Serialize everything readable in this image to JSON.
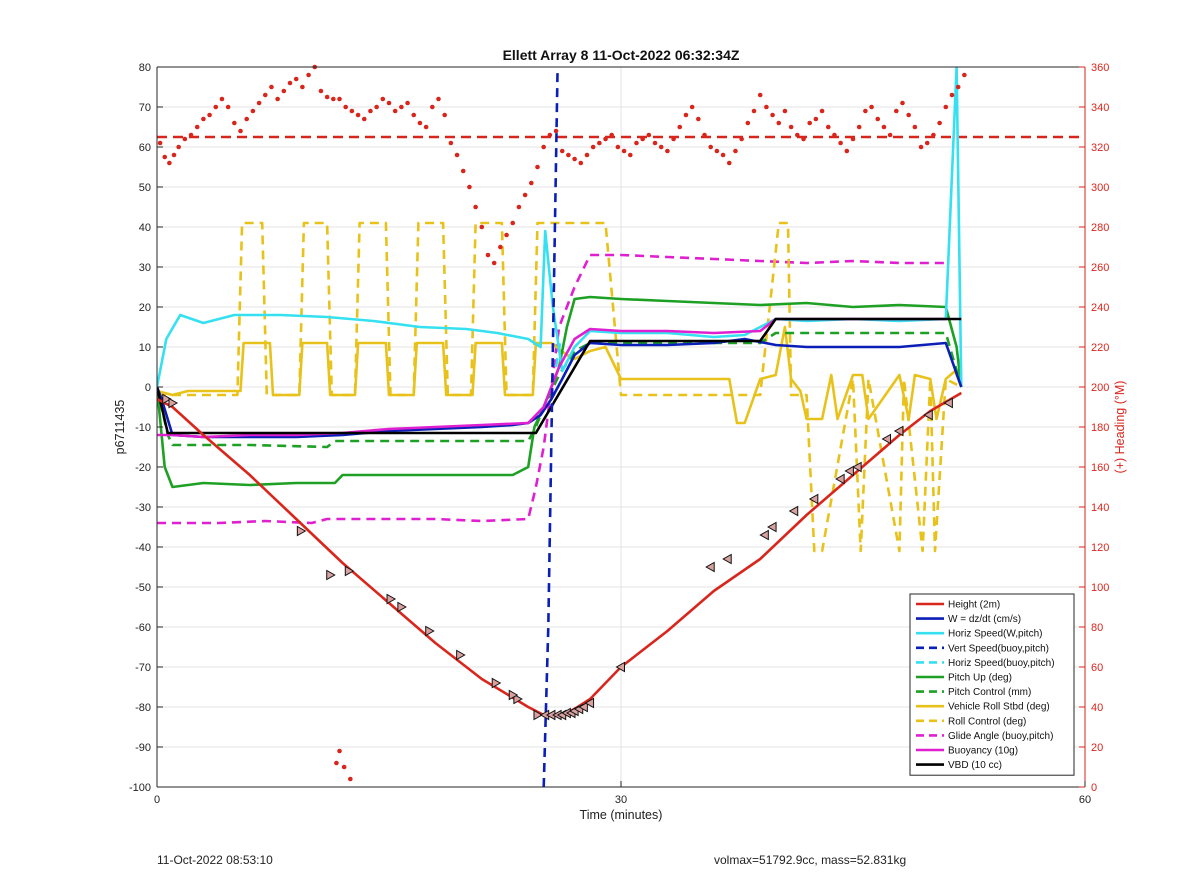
{
  "chart_data": {
    "type": "line",
    "title": "Ellett Array 8 11-Oct-2022 06:32:34Z",
    "xlabel": "Time (minutes)",
    "ylabel": "p6711435",
    "y2label": "(+) Heading (°M)",
    "xlim": [
      0,
      60
    ],
    "ylim": [
      -100,
      80
    ],
    "y2lim": [
      0,
      360
    ],
    "xticks": [
      0,
      30,
      60
    ],
    "yticks": [
      -100,
      -90,
      -80,
      -70,
      -60,
      -50,
      -40,
      -30,
      -20,
      -10,
      0,
      10,
      20,
      30,
      40,
      50,
      60,
      70,
      80
    ],
    "y2ticks": [
      0,
      20,
      40,
      60,
      80,
      100,
      120,
      140,
      160,
      180,
      200,
      220,
      240,
      260,
      280,
      300,
      320,
      340,
      360
    ],
    "xtick_labels": [
      "0",
      "30",
      "60"
    ],
    "ytick_labels": [
      "-100",
      "-90",
      "-80",
      "-70",
      "-60",
      "-50",
      "-40",
      "-30",
      "-20",
      "-10",
      "0",
      "10",
      "20",
      "30",
      "40",
      "50",
      "60",
      "70",
      "80"
    ],
    "y2tick_labels": [
      "0",
      "20",
      "40",
      "60",
      "80",
      "100",
      "120",
      "140",
      "160",
      "180",
      "200",
      "220",
      "240",
      "260",
      "280",
      "300",
      "320",
      "340",
      "360"
    ],
    "grid": true,
    "legend_position": "bottom-right",
    "heading_reference": 325,
    "series": [
      {
        "name": "Height (2m)",
        "color": "#d9261c",
        "dash": "solid",
        "x": [
          0,
          1,
          3,
          6,
          9,
          12,
          15,
          18,
          21,
          24,
          25,
          25.8,
          26.5,
          27.2,
          28,
          30,
          33,
          36,
          39,
          42,
          45,
          48,
          50,
          52
        ],
        "y": [
          -3,
          -5,
          -12,
          -22,
          -33,
          -44,
          -54,
          -64,
          -73,
          -80,
          -82,
          -82,
          -81.5,
          -80,
          -78,
          -70,
          -61,
          -51,
          -43,
          -32,
          -22,
          -12,
          -6,
          -1.5
        ]
      },
      {
        "name": "W = dz/dt (cm/s)",
        "color": "#0b1fb8",
        "dash": "solid",
        "x": [
          0,
          0.3,
          1,
          3,
          6,
          9,
          12,
          15,
          18,
          21,
          23,
          24,
          24.8,
          25.5,
          26.2,
          27,
          28,
          30,
          33,
          36,
          38,
          40,
          42,
          45,
          48,
          51,
          52
        ],
        "y": [
          0,
          -3,
          -12,
          -12.5,
          -12.5,
          -12.5,
          -12,
          -11,
          -10.5,
          -10,
          -9.5,
          -9,
          -7,
          -3,
          2,
          8,
          11,
          10.5,
          10.5,
          11,
          12,
          10.5,
          10,
          10,
          10,
          11,
          0
        ]
      },
      {
        "name": "Horiz Speed(W,pitch)",
        "color": "#35e0f0",
        "dash": "solid",
        "x": [
          0,
          0.6,
          1.5,
          3,
          5,
          8,
          11,
          14,
          17,
          20,
          22,
          24,
          24.8,
          25.1,
          25.6,
          26.2,
          27,
          28,
          30,
          33,
          36,
          38,
          40,
          42,
          45,
          48,
          51,
          51.7,
          52
        ],
        "y": [
          0,
          12,
          18,
          16,
          18,
          18,
          17.5,
          16.5,
          15,
          14.5,
          13.5,
          12,
          10,
          39,
          20,
          4,
          10,
          14,
          13.5,
          13.5,
          12.5,
          13,
          17,
          16.5,
          17,
          16.5,
          17,
          80,
          0
        ]
      },
      {
        "name": "Vert Speed(buoy,pitch)",
        "color": "#0b1fb8",
        "dash": "dashed",
        "x": [
          25,
          25.3,
          25.6,
          25.9
        ],
        "y": [
          -100,
          -60,
          10,
          80
        ]
      },
      {
        "name": "Horiz Speed(buoy,pitch)",
        "color": "#35e0f0",
        "dash": "dashed",
        "x": [
          25.8,
          26.1
        ],
        "y": [
          5,
          12
        ]
      },
      {
        "name": "Pitch Up (deg)",
        "color": "#1ea024",
        "dash": "solid",
        "x": [
          0,
          0.5,
          1,
          3,
          6,
          9,
          11.5,
          12,
          15,
          18,
          21,
          23,
          24,
          24.4,
          25,
          26,
          26.5,
          27,
          28,
          30,
          33,
          36,
          39,
          42,
          45,
          48,
          51,
          51.7,
          52
        ],
        "y": [
          0,
          -20,
          -25,
          -24,
          -24.5,
          -24,
          -24,
          -22,
          -22,
          -22,
          -22,
          -22,
          -20,
          -10,
          -5,
          5,
          15,
          22,
          22.5,
          22,
          21.5,
          21,
          20.5,
          21,
          20,
          20.5,
          20,
          10,
          0
        ]
      },
      {
        "name": "Pitch Control (mm)",
        "color": "#1ea024",
        "dash": "dashed",
        "x": [
          0,
          0.7,
          1,
          6,
          11,
          11.5,
          18,
          24,
          24.5,
          25,
          26,
          27,
          28,
          30,
          36,
          39,
          40,
          45,
          51,
          52
        ],
        "y": [
          0,
          -12,
          -14.5,
          -14.5,
          -15,
          -13.5,
          -13.5,
          -13.5,
          -10,
          -5,
          3,
          9,
          11,
          11,
          11,
          11,
          13.5,
          13.5,
          13.5,
          0
        ]
      },
      {
        "name": "Vehicle Roll Stbd (deg)",
        "color": "#e8c21a",
        "dash": "solid",
        "x": [
          0,
          1,
          2,
          4,
          5.4,
          5.6,
          7.3,
          7.5,
          9.2,
          9.4,
          11,
          11.2,
          12.8,
          13,
          14.8,
          15,
          16.6,
          16.8,
          18.5,
          18.7,
          20.4,
          20.6,
          22.3,
          22.5,
          24.3,
          24.5,
          25.5,
          26.5,
          27,
          28,
          29,
          30,
          33,
          36,
          37,
          37.5,
          38,
          39,
          40,
          40.6,
          41,
          41.6,
          42,
          43,
          43.6,
          44,
          45,
          45.6,
          46,
          48,
          48.6,
          49,
          50,
          50.4,
          51,
          51.6,
          52
        ],
        "y": [
          -1,
          -2,
          -1,
          -1,
          -1,
          11,
          11,
          -2,
          -2,
          11,
          11,
          -2,
          -2,
          11,
          11,
          -2,
          -2,
          11,
          11,
          -2,
          -2,
          11,
          11,
          -2,
          -2,
          11,
          11,
          8,
          7,
          9,
          10,
          2,
          2,
          2,
          2,
          -9,
          -9,
          2,
          3,
          15,
          2,
          -1,
          -8,
          -8,
          3,
          -8,
          3,
          3,
          -8,
          3,
          -8,
          3,
          2,
          -8,
          2,
          4,
          0
        ]
      },
      {
        "name": "Roll Control (deg)",
        "color": "#e8c21a",
        "dash": "dashed",
        "x": [
          0,
          1.5,
          2,
          5.2,
          5.5,
          6,
          6.8,
          7.1,
          9.2,
          9.5,
          11,
          11.3,
          12.8,
          13.1,
          14.8,
          15.1,
          16.6,
          16.9,
          18.5,
          18.8,
          20.3,
          20.6,
          22.3,
          22.6,
          24.3,
          24.6,
          27.6,
          28.5,
          29,
          30,
          33,
          36,
          37,
          38,
          39,
          40.2,
          40.8,
          41,
          42,
          42.5,
          43,
          45,
          45.5,
          46,
          48,
          48.3,
          49.5,
          50,
          50.3,
          51,
          52
        ],
        "y": [
          -2,
          -2,
          -2,
          -2,
          41,
          41,
          41,
          -2,
          -2,
          41,
          41,
          -2,
          -2,
          41,
          41,
          -2,
          -2,
          41,
          41,
          -2,
          -2,
          41,
          41,
          -2,
          -2,
          41,
          41,
          41,
          41,
          -2,
          -2,
          -2,
          -2,
          -2,
          -2,
          41,
          41,
          -2,
          -2,
          -41,
          -41,
          2,
          -41,
          2,
          -41,
          2,
          -41,
          2,
          -41,
          2,
          0
        ]
      },
      {
        "name": "Glide Angle (buoy,pitch)",
        "color": "#e020d0",
        "dash": "dashed",
        "x": [
          0,
          4,
          7,
          10,
          11,
          12,
          15,
          18,
          21,
          24,
          24.5,
          25,
          26,
          27,
          28,
          30,
          33,
          36,
          39,
          42,
          45,
          48,
          51
        ],
        "y": [
          -34,
          -34,
          -33.5,
          -34,
          -33,
          -33,
          -33,
          -33,
          -33.5,
          -33,
          -25,
          -15,
          15,
          25,
          33,
          33,
          32.5,
          32,
          31.5,
          31,
          31.5,
          31,
          31
        ]
      },
      {
        "name": "Buoyancy (10g)",
        "color": "#e020d0",
        "dash": "solid",
        "x": [
          0,
          1,
          3,
          6,
          9,
          12,
          15,
          18,
          21,
          24,
          25,
          26,
          27,
          28,
          30,
          33,
          36,
          39,
          40,
          42,
          45,
          48,
          51
        ],
        "y": [
          -12,
          -12,
          -12.5,
          -12,
          -12,
          -11.5,
          -10.5,
          -10,
          -9.5,
          -9,
          -5,
          5,
          12,
          14.5,
          14,
          14,
          13.5,
          14,
          17,
          17,
          17,
          17,
          17
        ]
      },
      {
        "name": "VBD (10 cc)",
        "color": "#000000",
        "dash": "solid",
        "x": [
          0,
          0.7,
          1,
          24,
          24.5,
          28,
          30,
          39,
          40,
          52
        ],
        "y": [
          0,
          -11.5,
          -11.5,
          -11.5,
          -11.5,
          11.5,
          11.5,
          11.5,
          17,
          17
        ]
      },
      {
        "name": "Heading",
        "color": "#d9261c",
        "dash": "none",
        "marker": "dot",
        "axis": "right",
        "x": [
          0.2,
          0.5,
          0.8,
          1.1,
          1.4,
          1.8,
          2.2,
          2.6,
          3.0,
          3.4,
          3.8,
          4.2,
          4.6,
          5.0,
          5.4,
          5.8,
          6.2,
          6.6,
          7.0,
          7.4,
          7.8,
          8.2,
          8.6,
          9.0,
          9.4,
          9.8,
          10.2,
          10.6,
          11.0,
          11.4,
          11.8,
          12.2,
          12.6,
          13.0,
          13.4,
          13.8,
          14.2,
          14.6,
          15.0,
          15.4,
          15.8,
          16.2,
          16.6,
          17.0,
          17.4,
          17.8,
          18.2,
          18.6,
          19.0,
          19.4,
          19.8,
          20.2,
          20.6,
          21.0,
          21.4,
          21.8,
          22.2,
          22.6,
          23.0,
          23.4,
          23.8,
          24.2,
          24.6,
          25.0,
          25.4,
          25.8,
          26.2,
          26.6,
          27.0,
          27.4,
          27.8,
          28.2,
          28.6,
          29.0,
          29.4,
          29.8,
          30.2,
          30.6,
          31.0,
          31.4,
          31.8,
          32.2,
          32.6,
          33.0,
          33.4,
          33.8,
          34.2,
          34.6,
          35.0,
          35.4,
          35.8,
          36.2,
          36.6,
          37.0,
          37.4,
          37.8,
          38.2,
          38.6,
          39.0,
          39.4,
          39.8,
          40.2,
          40.6,
          41.0,
          41.4,
          41.8,
          42.2,
          42.6,
          43.0,
          43.4,
          43.8,
          44.2,
          44.6,
          45.0,
          45.4,
          45.8,
          46.2,
          46.6,
          47.0,
          47.4,
          47.8,
          48.2,
          48.6,
          49.0,
          49.4,
          49.8,
          50.2,
          50.6,
          51.0,
          51.4,
          51.8,
          52.2,
          11.6,
          11.8,
          12.1,
          12.5
        ],
        "y": [
          322,
          315,
          312,
          316,
          320,
          324,
          326,
          330,
          334,
          336,
          340,
          344,
          340,
          332,
          328,
          334,
          338,
          342,
          346,
          350,
          344,
          348,
          352,
          354,
          350,
          356,
          360,
          348,
          345,
          344,
          344,
          340,
          338,
          336,
          334,
          338,
          340,
          344,
          342,
          338,
          340,
          342,
          336,
          332,
          330,
          340,
          344,
          336,
          322,
          316,
          308,
          300,
          290,
          280,
          266,
          262,
          270,
          276,
          282,
          290,
          296,
          302,
          310,
          320,
          326,
          328,
          318,
          316,
          314,
          312,
          316,
          320,
          322,
          324,
          326,
          320,
          318,
          316,
          322,
          324,
          326,
          322,
          320,
          318,
          324,
          330,
          336,
          340,
          334,
          326,
          320,
          318,
          316,
          312,
          318,
          324,
          332,
          338,
          346,
          340,
          336,
          332,
          338,
          330,
          326,
          324,
          332,
          334,
          338,
          330,
          326,
          322,
          318,
          324,
          330,
          338,
          340,
          334,
          330,
          326,
          338,
          342,
          336,
          330,
          320,
          322,
          326,
          332,
          340,
          346,
          350,
          356,
          12,
          18,
          10,
          4
        ]
      }
    ],
    "height_markers": {
      "x": [
        0.6,
        1.0,
        11.2,
        23.3,
        9.3,
        12.4,
        15.1,
        15.8,
        17.6,
        19.6,
        21.9,
        23.0,
        24.6,
        25.1,
        25.5,
        25.9,
        26.2,
        26.5,
        26.8,
        27.0,
        27.3,
        27.6,
        28.0,
        30.0,
        35.8,
        36.9,
        39.3,
        39.8,
        41.2,
        42.5,
        44.2,
        44.8,
        45.3,
        47.2,
        48.0,
        49.9,
        51.2
      ],
      "y": [
        -3,
        -4,
        -47,
        -78,
        -36,
        -46,
        -53,
        -55,
        -61,
        -67,
        -74,
        -77,
        -82,
        -82,
        -82,
        -82,
        -82,
        -81.5,
        -81.5,
        -81,
        -80.5,
        -80,
        -79,
        -70,
        -45,
        -43,
        -37,
        -35,
        -31,
        -28,
        -23,
        -21,
        -20,
        -13,
        -11,
        -7,
        -4
      ]
    }
  },
  "footer": {
    "left": "11-Oct-2022 08:53:10",
    "right": "volmax=51792.9cc, mass=52.831kg"
  }
}
